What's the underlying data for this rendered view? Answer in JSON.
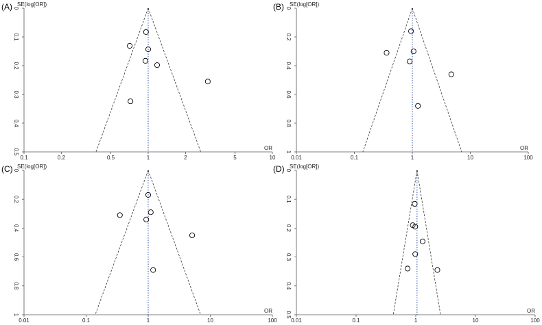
{
  "chart_data": [
    {
      "type": "scatter",
      "panel_label": "(A)",
      "y_label": "SE(log[OR])",
      "x_label": "OR",
      "xscale": "log",
      "xlim": [
        0.1,
        10
      ],
      "xticks": [
        0.1,
        0.2,
        0.5,
        1,
        2,
        5,
        10
      ],
      "ylim": [
        0,
        0.5
      ],
      "yticks": [
        0,
        0.1,
        0.2,
        0.3,
        0.4,
        0.5
      ],
      "y_reversed": true,
      "pooled": 1,
      "funnel_limits": [
        0.38,
        2.65
      ],
      "point_color": "#000000",
      "pooled_color": "#2b4fa8",
      "x": [
        0.96,
        0.71,
        1.0,
        0.95,
        1.18,
        3.02,
        0.72
      ],
      "values": [
        0.083,
        0.131,
        0.143,
        0.183,
        0.198,
        0.255,
        0.324
      ]
    },
    {
      "type": "scatter",
      "panel_label": "(B)",
      "y_label": "SE(log[OR])",
      "x_label": "OR",
      "xscale": "log",
      "xlim": [
        0.01,
        100
      ],
      "xticks": [
        0.01,
        0.1,
        1,
        10,
        100
      ],
      "ylim": [
        0,
        1
      ],
      "yticks": [
        0,
        0.2,
        0.4,
        0.6,
        0.8,
        1
      ],
      "y_reversed": true,
      "pooled": 1,
      "funnel_limits": [
        0.14,
        7.1
      ],
      "point_color": "#000000",
      "pooled_color": "#2b4fa8",
      "x": [
        0.95,
        0.36,
        1.05,
        0.9,
        4.7,
        1.25
      ],
      "values": [
        0.16,
        0.31,
        0.3,
        0.37,
        0.46,
        0.68
      ]
    },
    {
      "type": "scatter",
      "panel_label": "(C)",
      "y_label": "SE(log[OR])",
      "x_label": "OR",
      "xscale": "log",
      "xlim": [
        0.01,
        100
      ],
      "xticks": [
        0.01,
        0.1,
        1,
        10,
        100
      ],
      "ylim": [
        0,
        1
      ],
      "yticks": [
        0,
        0.2,
        0.4,
        0.6,
        0.8,
        1
      ],
      "y_reversed": true,
      "pooled": 1,
      "funnel_limits": [
        0.14,
        7.0
      ],
      "point_color": "#000000",
      "pooled_color": "#2b4fa8",
      "x": [
        1.0,
        0.35,
        1.1,
        0.93,
        5.1,
        1.2
      ],
      "values": [
        0.17,
        0.31,
        0.29,
        0.34,
        0.45,
        0.69
      ]
    },
    {
      "type": "scatter",
      "panel_label": "(D)",
      "y_label": "SE(log[OR])",
      "x_label": "OR",
      "xscale": "log",
      "xlim": [
        0.01,
        100
      ],
      "xticks": [
        0.01,
        0.1,
        1,
        10,
        100
      ],
      "ylim": [
        0,
        0.5
      ],
      "yticks": [
        0,
        0.1,
        0.2,
        0.3,
        0.4,
        0.5
      ],
      "y_reversed": true,
      "pooled": 1.05,
      "funnel_limits": [
        0.42,
        2.6
      ],
      "point_color": "#000000",
      "pooled_color": "#2b4fa8",
      "x": [
        0.96,
        0.89,
        0.98,
        1.3,
        0.98,
        0.73,
        2.3
      ],
      "values": [
        0.116,
        0.19,
        0.195,
        0.246,
        0.29,
        0.34,
        0.345
      ]
    }
  ]
}
